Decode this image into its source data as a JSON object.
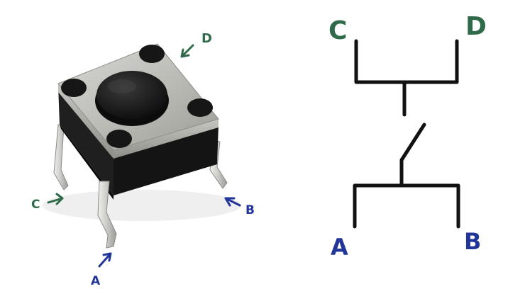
{
  "photo": {
    "pin_labels": {
      "a": "A",
      "b": "B",
      "c": "C",
      "d": "D"
    }
  },
  "schematic": {
    "terminal_labels": {
      "a": "A",
      "b": "B",
      "c": "C",
      "d": "D"
    }
  },
  "colors": {
    "background": "#ffffff",
    "label_green": "#2f6b4a",
    "label_blue": "#22369a",
    "wire": "#111111",
    "switch_metal": "#b9b9b4",
    "switch_body": "#1c1c1c"
  }
}
